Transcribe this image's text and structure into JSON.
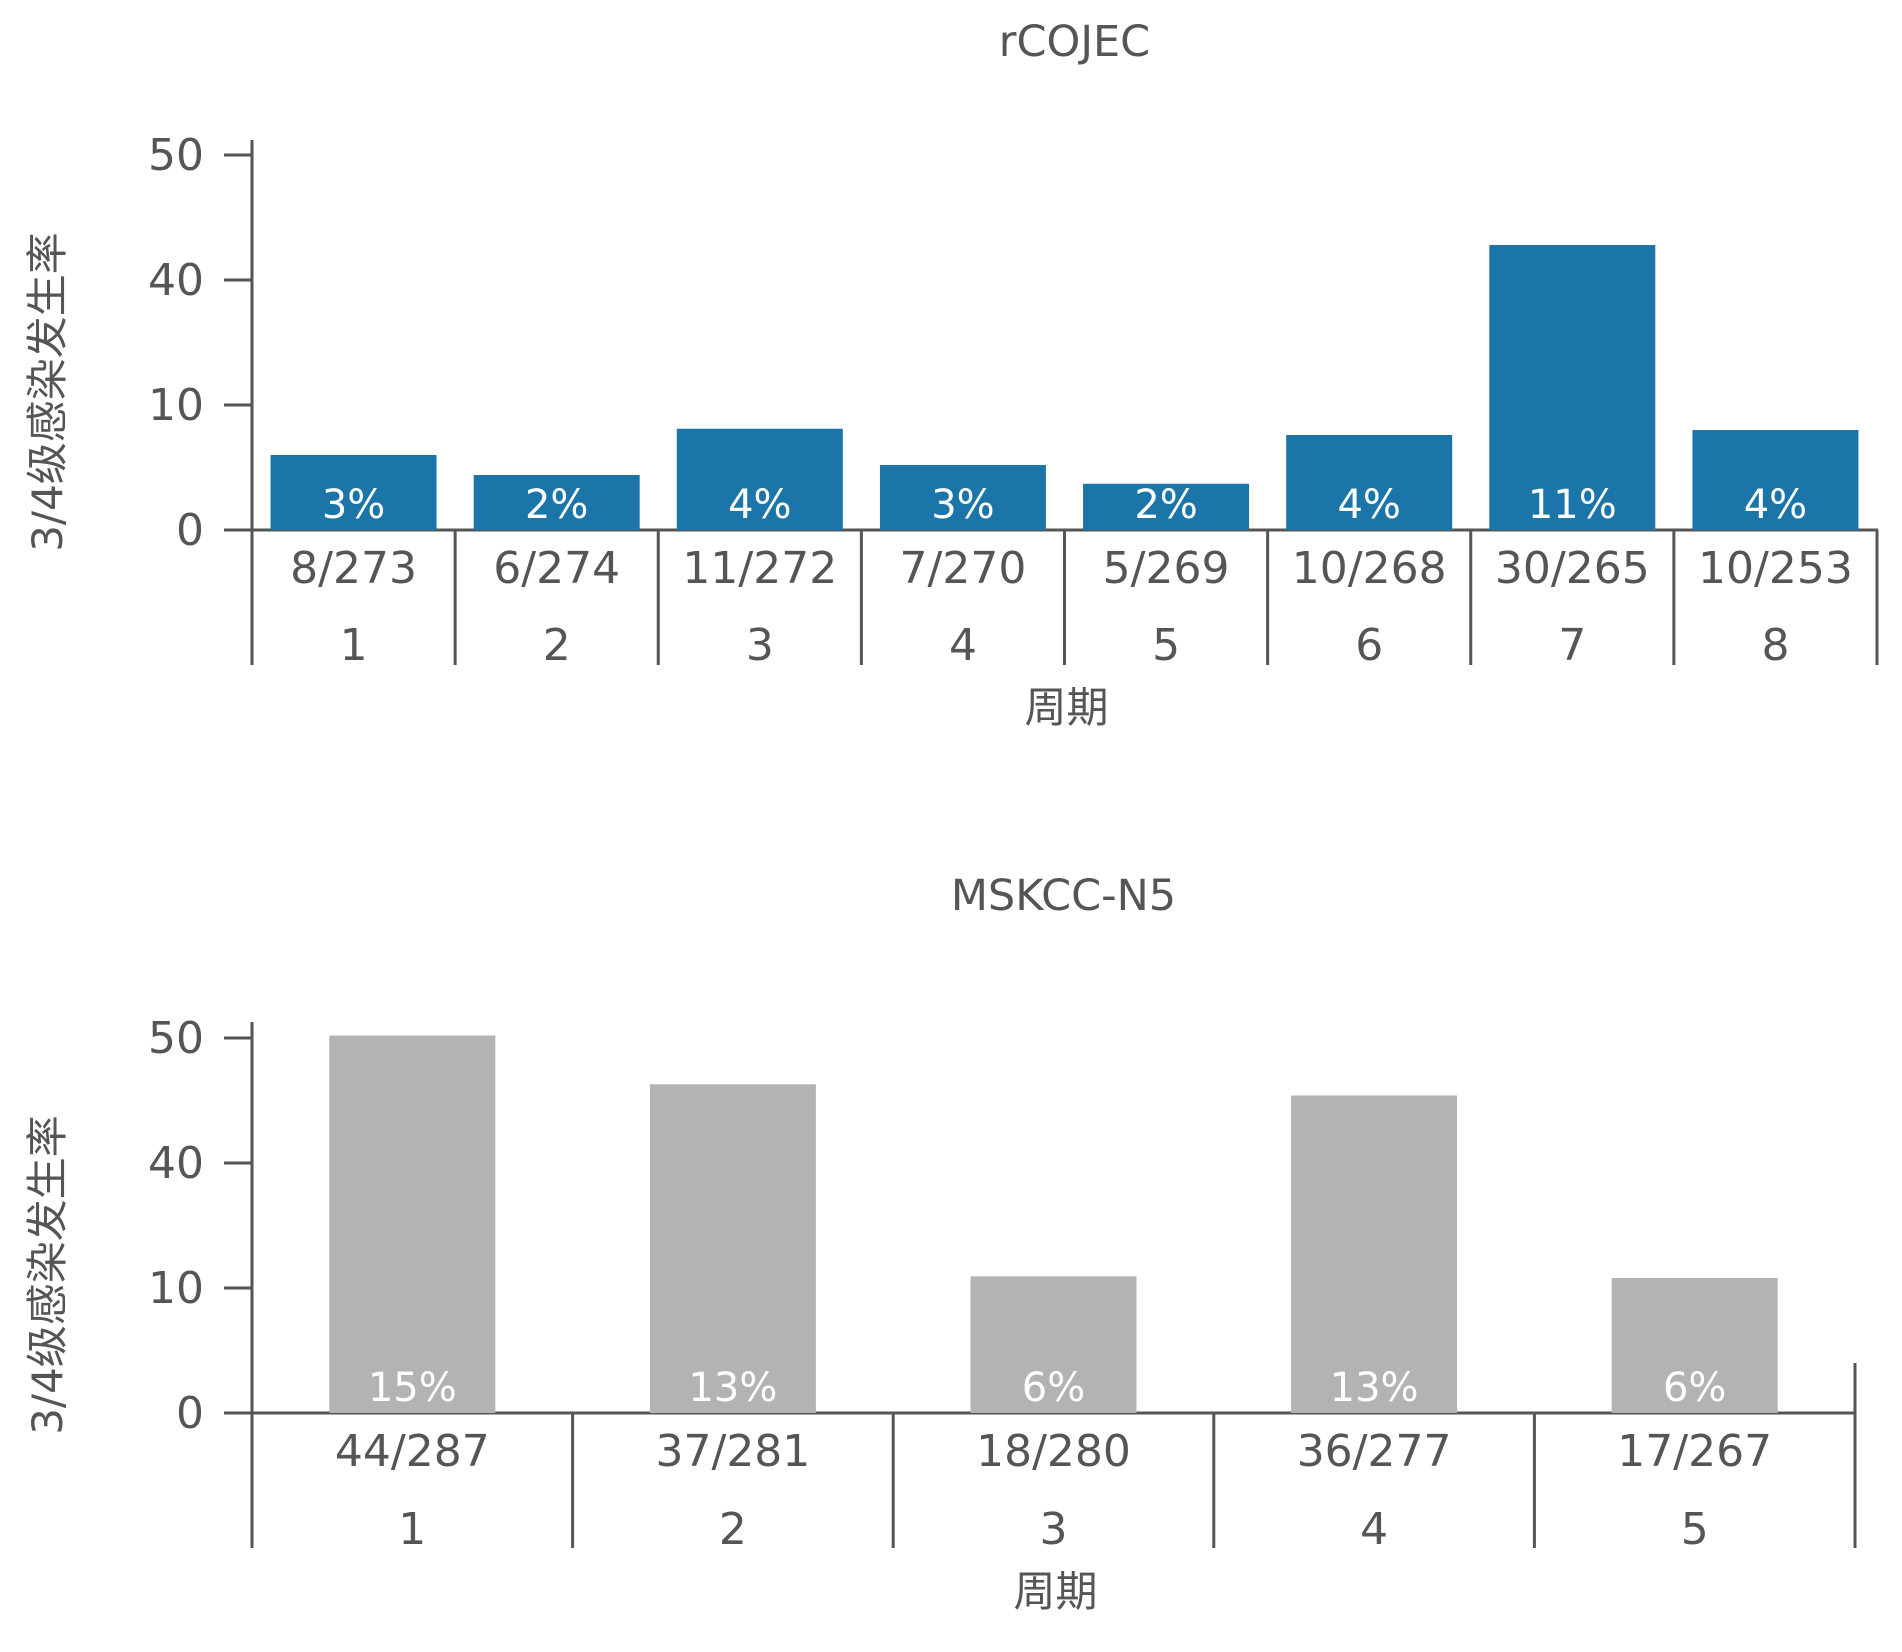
{
  "chart_data": [
    {
      "type": "bar",
      "title": "rCOJEC",
      "xlabel": "周期",
      "ylabel": "3/4级感染发生率",
      "yticks": [
        "0",
        "10",
        "40",
        "50"
      ],
      "categories": [
        "1",
        "2",
        "3",
        "4",
        "5",
        "6",
        "7",
        "8"
      ],
      "fractions": [
        "8/273",
        "6/274",
        "11/272",
        "7/270",
        "5/269",
        "10/268",
        "30/265",
        "10/253"
      ],
      "percent_labels": [
        "3%",
        "2%",
        "4%",
        "3%",
        "2%",
        "4%",
        "11%",
        "4%"
      ],
      "values": [
        6,
        4.4,
        8.1,
        5.2,
        3.7,
        7.6,
        42.8,
        8
      ],
      "color": "#1b75a8"
    },
    {
      "type": "bar",
      "title": "MSKCC-N5",
      "xlabel": "周期",
      "ylabel": "3/4级感染发生率",
      "yticks": [
        "0",
        "10",
        "40",
        "50"
      ],
      "categories": [
        "1",
        "2",
        "3",
        "4",
        "5"
      ],
      "fractions": [
        "44/287",
        "37/281",
        "18/280",
        "36/277",
        "17/267"
      ],
      "percent_labels": [
        "15%",
        "13%",
        "6%",
        "13%",
        "6%"
      ],
      "values": [
        50.2,
        46.3,
        12.8,
        45.4,
        12.4
      ],
      "color": "#b3b3b3"
    }
  ]
}
